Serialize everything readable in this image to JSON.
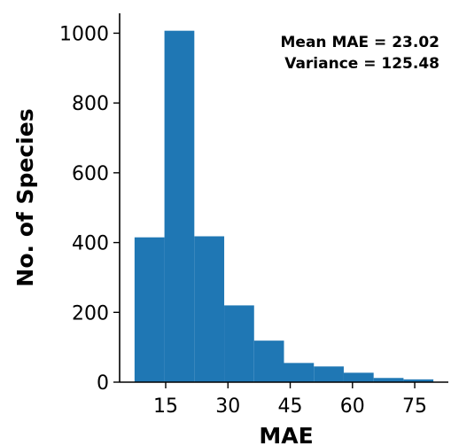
{
  "chart_data": {
    "type": "bar",
    "histogram": true,
    "bin_edges": [
      7.5,
      14.7,
      21.9,
      29.1,
      36.3,
      43.5,
      50.7,
      57.9,
      65.1,
      72.3,
      79.5
    ],
    "values": [
      415,
      1007,
      418,
      220,
      119,
      55,
      45,
      27,
      12,
      8
    ],
    "color": "#1f77b4",
    "xlabel": "MAE",
    "ylabel": "No. of Species",
    "xticks": [
      15,
      30,
      45,
      60,
      75
    ],
    "yticks": [
      0,
      200,
      400,
      600,
      800,
      1000
    ],
    "xlim": [
      3.9,
      83.1
    ],
    "ylim": [
      0,
      1057
    ],
    "grid": false,
    "annotations": [
      "Mean MAE = 23.02",
      "Variance = 125.48"
    ]
  }
}
